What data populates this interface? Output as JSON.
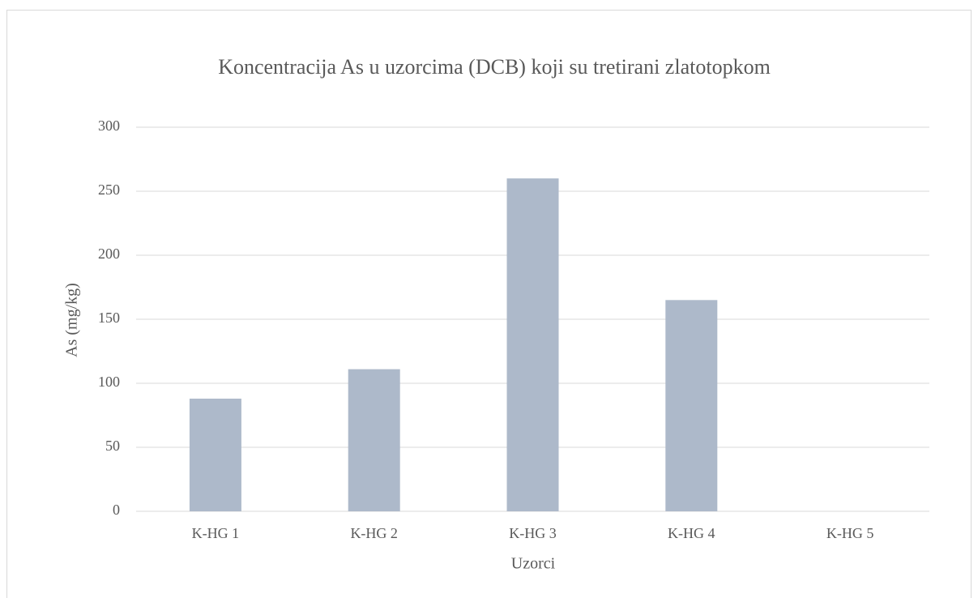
{
  "chart_data": {
    "type": "bar",
    "title": "Koncentracija As u uzorcima (DCB) koji su tretirani zlatotopkom",
    "x_label": "Uzorci",
    "y_label": "As  (mg/kg)",
    "categories": [
      "K-HG 1",
      "K-HG 2",
      "K-HG 3",
      "K-HG 4",
      "K-HG 5"
    ],
    "values": [
      88,
      111,
      260,
      165,
      0
    ],
    "color": "#adb9ca",
    "ylim": [
      0,
      300
    ],
    "yticks": [
      0,
      50,
      100,
      150,
      200,
      250,
      300
    ],
    "grid": true
  }
}
